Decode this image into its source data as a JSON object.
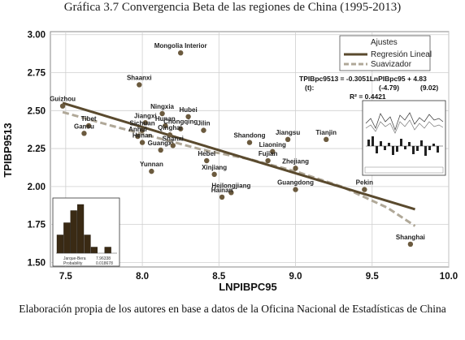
{
  "header": {
    "title": "Gráfica 3.7 Convergencia Beta de las regiones de China (1995-2013)"
  },
  "footer": {
    "caption": "Elaboración propia de los autores en base a datos de la Oficina Nacional de Estadísticas de China"
  },
  "chart_data": {
    "type": "scatter",
    "title": "",
    "xlabel": "LNPIBPC95",
    "ylabel": "TPIBP9513",
    "xlim": [
      7.4,
      10.0
    ],
    "ylim": [
      1.47,
      3.02
    ],
    "xticks": [
      7.5,
      8.0,
      8.5,
      9.0,
      9.5,
      10.0
    ],
    "xtick_labels": [
      "7.5",
      "8.0",
      "8.5",
      "9.0",
      "9.5",
      "10.0"
    ],
    "yticks": [
      1.5,
      1.75,
      2.0,
      2.25,
      2.5,
      2.75,
      3.0
    ],
    "ytick_labels": [
      "1.50",
      "1.75",
      "2.00",
      "2.25",
      "2.50",
      "2.75",
      "3.00"
    ],
    "grid": true,
    "colors": {
      "points": "#6b5a3e",
      "line": "#5a4a2e",
      "smooth": "#b0a898",
      "grid": "#cfcfcf",
      "plot_bg": "#ffffff"
    },
    "points": [
      {
        "label": "Guizhou",
        "x": 7.48,
        "y": 2.53
      },
      {
        "label": "Tibet",
        "x": 7.65,
        "y": 2.4
      },
      {
        "label": "Gansu",
        "x": 7.62,
        "y": 2.35
      },
      {
        "label": "Shaanxi",
        "x": 7.98,
        "y": 2.67
      },
      {
        "label": "Mongolia Interior",
        "x": 8.25,
        "y": 2.88
      },
      {
        "label": "Ningxia",
        "x": 8.13,
        "y": 2.48
      },
      {
        "label": "Hubei",
        "x": 8.3,
        "y": 2.46
      },
      {
        "label": "Jiangxi",
        "x": 8.02,
        "y": 2.42
      },
      {
        "label": "Hunan",
        "x": 8.15,
        "y": 2.4
      },
      {
        "label": "Sichuan",
        "x": 8.0,
        "y": 2.37
      },
      {
        "label": "Chongqing",
        "x": 8.25,
        "y": 2.38
      },
      {
        "label": "Anhui",
        "x": 7.97,
        "y": 2.33
      },
      {
        "label": "Qinghai",
        "x": 8.18,
        "y": 2.34
      },
      {
        "label": "Jilin",
        "x": 8.4,
        "y": 2.37
      },
      {
        "label": "Henan",
        "x": 8.0,
        "y": 2.29
      },
      {
        "label": "Guangxi",
        "x": 8.12,
        "y": 2.24
      },
      {
        "label": "Shanxi",
        "x": 8.2,
        "y": 2.27
      },
      {
        "label": "Shandong",
        "x": 8.7,
        "y": 2.29
      },
      {
        "label": "Jiangsu",
        "x": 8.95,
        "y": 2.31
      },
      {
        "label": "Tianjin",
        "x": 9.2,
        "y": 2.31
      },
      {
        "label": "Liaoning",
        "x": 8.85,
        "y": 2.23
      },
      {
        "label": "Fujian",
        "x": 8.82,
        "y": 2.17
      },
      {
        "label": "Hebei",
        "x": 8.42,
        "y": 2.17
      },
      {
        "label": "Xinjiang",
        "x": 8.47,
        "y": 2.08
      },
      {
        "label": "Yunnan",
        "x": 8.06,
        "y": 2.1
      },
      {
        "label": "Zhejiang",
        "x": 9.0,
        "y": 2.12
      },
      {
        "label": "Heilongjiang",
        "x": 8.58,
        "y": 1.96
      },
      {
        "label": "Hainan",
        "x": 8.52,
        "y": 1.93
      },
      {
        "label": "Guangdong",
        "x": 9.0,
        "y": 1.98
      },
      {
        "label": "Pekin",
        "x": 9.45,
        "y": 1.98
      },
      {
        "label": "Shanghai",
        "x": 9.75,
        "y": 1.62
      }
    ],
    "regression_line": {
      "x": [
        7.48,
        9.78
      ],
      "y": [
        2.55,
        1.85
      ]
    },
    "smoother_line": {
      "x": [
        7.48,
        7.8,
        8.1,
        8.4,
        8.7,
        9.0,
        9.3,
        9.6,
        9.78
      ],
      "y": [
        2.49,
        2.4,
        2.32,
        2.24,
        2.18,
        2.1,
        2.0,
        1.86,
        1.74
      ]
    },
    "legend": {
      "position": "top-right",
      "title": "Ajustes",
      "entries": [
        {
          "name": "Regresión Lineal",
          "style": "solid"
        },
        {
          "name": "Suavizador",
          "style": "dashed"
        }
      ]
    },
    "equation": {
      "line1": "TPIBpc9513 = -0.3051LnPIBpc95 + 4.83",
      "line2_label": "(t):",
      "line2_t1": "(-4.79)",
      "line2_t2": "(9.02)",
      "line3": "R² = 0.4421"
    },
    "inset_histogram": {
      "position": "bottom-left",
      "values": [
        3,
        5,
        7,
        8,
        3,
        1,
        0,
        1
      ],
      "notes": [
        "Jarque-Bera",
        "Probability",
        "7.96338",
        "0.018678"
      ]
    },
    "inset_timeseries": {
      "position": "right"
    }
  }
}
